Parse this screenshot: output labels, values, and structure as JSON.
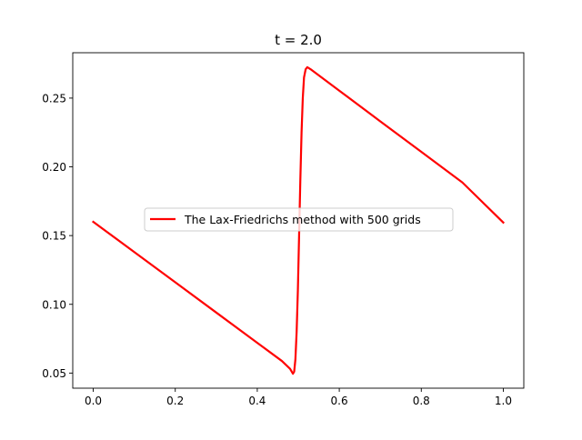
{
  "chart_data": {
    "type": "line",
    "title": "t = 2.0",
    "xlabel": "",
    "ylabel": "",
    "xlim": [
      -0.05,
      1.05
    ],
    "ylim": [
      0.039,
      0.283
    ],
    "xticks": [
      0.0,
      0.2,
      0.4,
      0.6,
      0.8,
      1.0
    ],
    "xtick_labels": [
      "0.0",
      "0.2",
      "0.4",
      "0.6",
      "0.8",
      "1.0"
    ],
    "yticks": [
      0.05,
      0.1,
      0.15,
      0.2,
      0.25
    ],
    "ytick_labels": [
      "0.05",
      "0.10",
      "0.15",
      "0.20",
      "0.25"
    ],
    "grid": false,
    "legend_position": "center",
    "series": [
      {
        "name": "The Lax-Friedrichs method with 500 grids",
        "color": "#ff0000",
        "x": [
          0.0,
          0.1,
          0.2,
          0.3,
          0.4,
          0.46,
          0.48,
          0.487,
          0.49,
          0.493,
          0.496,
          0.499,
          0.502,
          0.505,
          0.508,
          0.511,
          0.514,
          0.518,
          0.522,
          0.53,
          0.6,
          0.7,
          0.8,
          0.9,
          1.0
        ],
        "y": [
          0.16,
          0.138,
          0.116,
          0.094,
          0.072,
          0.0588,
          0.0531,
          0.0495,
          0.051,
          0.06,
          0.08,
          0.11,
          0.15,
          0.19,
          0.225,
          0.25,
          0.265,
          0.271,
          0.2725,
          0.271,
          0.2554,
          0.2331,
          0.2109,
          0.1887,
          0.1595
        ]
      }
    ]
  }
}
